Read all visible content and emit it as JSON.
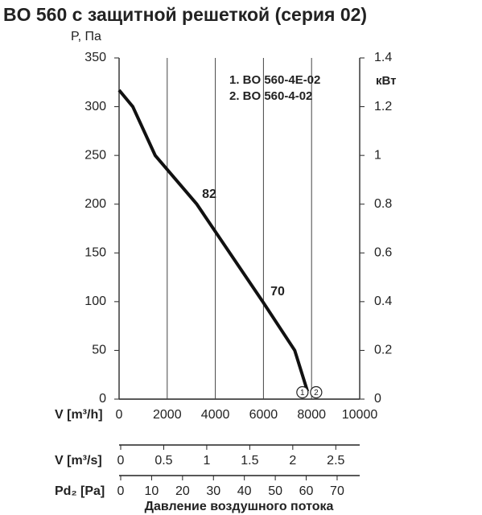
{
  "chart_data": {
    "type": "line",
    "title": "BO 560 с защитной решеткой (серия 02)",
    "y_label": "P, Па",
    "y2_label": "кВт",
    "x_label": "V [m³/h]",
    "x": [
      0,
      570,
      1500,
      3230,
      5970,
      7300,
      7830
    ],
    "series": [
      {
        "name": "BO 560",
        "color": "#111111",
        "values": [
          317,
          300,
          250,
          200,
          100,
          50,
          8
        ]
      }
    ],
    "xlim": [
      0,
      10000
    ],
    "xticks": [
      0,
      2000,
      4000,
      6000,
      8000,
      10000
    ],
    "ylim": [
      0,
      350
    ],
    "yticks": [
      0,
      50,
      100,
      150,
      200,
      250,
      300,
      350
    ],
    "y2lim": [
      0,
      1.4
    ],
    "y2ticks": [
      0,
      0.2,
      0.4,
      0.6,
      0.8,
      1,
      1.2,
      1.4
    ],
    "grid": "x",
    "notes": [
      "1. BO 560-4E-02",
      "2. BO 560-4-02"
    ],
    "annotations": [
      {
        "text": "82",
        "x": 3745,
        "y": 210
      },
      {
        "text": "70",
        "x": 6590,
        "y": 110
      }
    ],
    "curve_end_labels": [
      {
        "text": "1",
        "x": 7620,
        "y": 7
      },
      {
        "text": "2",
        "x": 8190,
        "y": 7
      }
    ],
    "secondary_scales": [
      {
        "label": "V [m³/s]",
        "xlim": [
          0,
          2.7778
        ],
        "xticks": [
          0,
          0.5,
          1,
          1.5,
          2,
          2.5
        ]
      },
      {
        "label": "Pd₂ [Pa]",
        "xlim": [
          0,
          77.3
        ],
        "xticks": [
          0,
          10,
          20,
          30,
          40,
          50,
          60,
          70
        ]
      }
    ],
    "footer": "Давление воздушного потока"
  }
}
